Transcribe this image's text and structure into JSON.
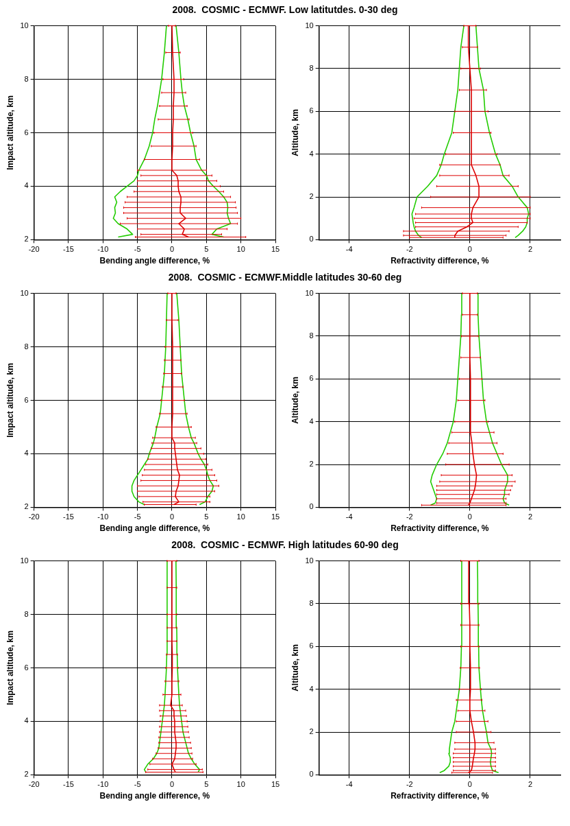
{
  "chart_data": [
    {
      "type": "line",
      "title": "2008.  COSMIC - ECMWF. Low latitutdes. 0-30 deg",
      "xlabel": "Bending angle difference, %",
      "ylabel": "Impact altitude, km",
      "xlim": [
        -20,
        15
      ],
      "xticks": [
        -20,
        -15,
        -10,
        -5,
        0,
        5,
        10,
        15
      ],
      "ylim": [
        2,
        10
      ],
      "yticks": [
        2,
        4,
        6,
        8,
        10
      ],
      "grid": true,
      "marker": "none",
      "series": [
        {
          "color": "#dd0000",
          "x": [
            2.4,
            1.5,
            1.8,
            1.0,
            2.0,
            1.2,
            1.2,
            1.3,
            1.3,
            1.0,
            0.9,
            0.9,
            0.7,
            0,
            0,
            0.1,
            0.1,
            0.2,
            0.2,
            0.3,
            0.3,
            0.1,
            0
          ],
          "values": [
            2.1,
            2.2,
            2.4,
            2.6,
            2.8,
            3,
            3.2,
            3.4,
            3.6,
            3.8,
            4,
            4.2,
            4.4,
            4.6,
            5,
            5.5,
            6,
            6.5,
            7,
            7.5,
            8,
            9,
            10
          ],
          "xerrors": [
            [
              -5.3,
              10.7
            ],
            [
              -4.5,
              7.2
            ],
            [
              -5,
              8
            ],
            [
              -7.5,
              9.5
            ],
            [
              -6.5,
              10
            ],
            [
              -7,
              9.5
            ],
            [
              -7,
              9.3
            ],
            [
              -6.8,
              9.2
            ],
            [
              -6.5,
              8.5
            ],
            [
              -5.5,
              7.5
            ],
            [
              -5,
              7
            ],
            [
              -5,
              6.5
            ],
            [
              -4.5,
              5.8
            ],
            [
              -5,
              5
            ],
            [
              -4,
              4
            ],
            [
              -3,
              3.5
            ],
            [
              -2.6,
              3.0
            ],
            [
              -2,
              2.5
            ],
            [
              -1.8,
              2.2
            ],
            [
              -1.5,
              2
            ],
            [
              -1.3,
              1.7
            ],
            [
              -0.9,
              1.2
            ],
            [
              -0.5,
              0.5
            ]
          ]
        },
        {
          "color": "#22cc00",
          "x": [
            -7.8,
            -5.7,
            -6.5,
            -7.8,
            -8.5,
            -8.2,
            -8.3,
            -8,
            -8.3,
            -7.5,
            -6.5,
            -5.5,
            -5,
            -4.8,
            -4,
            -3.3,
            -2.8,
            -2.5,
            -2.1,
            -1.8,
            -1.5,
            -1.1,
            -0.8
          ],
          "values": [
            2.1,
            2.2,
            2.4,
            2.6,
            2.8,
            3,
            3.2,
            3.4,
            3.6,
            3.8,
            4,
            4.2,
            4.4,
            4.6,
            5,
            5.5,
            6,
            6.5,
            7,
            7.5,
            8,
            9,
            10
          ]
        },
        {
          "color": "#22cc00",
          "x": [
            7.5,
            5.8,
            6.5,
            8.5,
            8.2,
            8,
            8.1,
            8,
            7.5,
            6.8,
            6,
            5.3,
            5,
            4.3,
            3.5,
            3.2,
            2.7,
            2.3,
            1.8,
            1.5,
            1.3,
            1,
            0.6
          ],
          "values": [
            2.1,
            2.2,
            2.4,
            2.6,
            2.8,
            3,
            3.2,
            3.4,
            3.6,
            3.8,
            4,
            4.2,
            4.4,
            4.6,
            5,
            5.5,
            6,
            6.5,
            7,
            7.5,
            8,
            9,
            10
          ]
        }
      ]
    },
    {
      "type": "line",
      "xlabel": "Refractivity difference, %",
      "ylabel": "Altitude, km",
      "xlim": [
        -5,
        3
      ],
      "xticks": [
        -4,
        -2,
        0,
        2
      ],
      "ylim": [
        0,
        10
      ],
      "yticks": [
        0,
        2,
        4,
        6,
        8,
        10
      ],
      "grid": true,
      "marker": "none",
      "series": [
        {
          "color": "#dd0000",
          "x": [
            -0.5,
            -0.5,
            -0.4,
            -0.1,
            0.1,
            0.05,
            0.05,
            0.1,
            0.3,
            0.3,
            0.2,
            0.05,
            0.05,
            0.05,
            0.05,
            0.05,
            0,
            -0.05,
            -0.05
          ],
          "values": [
            0.1,
            0.2,
            0.4,
            0.6,
            0.8,
            1,
            1.2,
            1.5,
            2,
            2.5,
            3,
            3.5,
            4,
            5,
            6,
            7,
            8,
            9,
            10
          ],
          "xerrors": [
            [
              -2,
              1.1
            ],
            [
              -2.2,
              1.2
            ],
            [
              -2.2,
              1.3
            ],
            [
              -1.8,
              1.6
            ],
            [
              -1.8,
              1.9
            ],
            [
              -1.85,
              2.0
            ],
            [
              -1.8,
              2.0
            ],
            [
              -1.6,
              2.0
            ],
            [
              -1.3,
              2.0
            ],
            [
              -1.1,
              1.6
            ],
            [
              -1.0,
              1.3
            ],
            [
              -1.0,
              1.0
            ],
            [
              -0.8,
              0.9
            ],
            [
              -0.55,
              0.7
            ],
            [
              -0.5,
              0.6
            ],
            [
              -0.35,
              0.55
            ],
            [
              -0.3,
              0.35
            ],
            [
              -0.25,
              0.25
            ],
            [
              -0.2,
              0.2
            ]
          ]
        },
        {
          "color": "#22cc00",
          "x": [
            -1.6,
            -1.7,
            -1.8,
            -1.85,
            -1.88,
            -1.9,
            -1.92,
            -1.85,
            -1.75,
            -1.4,
            -1.1,
            -0.95,
            -0.85,
            -0.6,
            -0.5,
            -0.4,
            -0.35,
            -0.3,
            -0.2
          ],
          "values": [
            0.1,
            0.2,
            0.4,
            0.6,
            0.8,
            1,
            1.2,
            1.5,
            2,
            2.5,
            3,
            3.5,
            4,
            5,
            6,
            7,
            8,
            9,
            10
          ]
        },
        {
          "color": "#22cc00",
          "x": [
            1.5,
            1.6,
            1.75,
            1.85,
            1.9,
            1.9,
            1.95,
            1.9,
            1.6,
            1.4,
            1.1,
            1.0,
            0.85,
            0.65,
            0.5,
            0.45,
            0.3,
            0.25,
            0.2
          ],
          "values": [
            0.1,
            0.2,
            0.4,
            0.6,
            0.8,
            1,
            1.2,
            1.5,
            2,
            2.5,
            3,
            3.5,
            4,
            5,
            6,
            7,
            8,
            9,
            10
          ]
        }
      ]
    },
    {
      "type": "line",
      "title": "2008.  COSMIC - ECMWF.Middle latitudes 30-60 deg",
      "xlabel": "Bending angle difference, %",
      "ylabel": "Impact altitude, km",
      "xlim": [
        -20,
        15
      ],
      "xticks": [
        -20,
        -15,
        -10,
        -5,
        0,
        5,
        10,
        15
      ],
      "ylim": [
        2,
        10
      ],
      "yticks": [
        2,
        4,
        6,
        8,
        10
      ],
      "grid": true,
      "marker": "none",
      "series": [
        {
          "color": "#dd0000",
          "x": [
            0.3,
            1.0,
            0.5,
            0.6,
            0.9,
            1.0,
            1.1,
            0.8,
            0.7,
            0.6,
            0.5,
            0.4,
            0.4,
            0,
            0,
            0.1,
            0.1,
            0.1,
            0.1,
            0.1,
            0.1,
            0,
            0
          ],
          "values": [
            2.1,
            2.2,
            2.4,
            2.6,
            2.8,
            3,
            3.2,
            3.4,
            3.6,
            3.8,
            4,
            4.2,
            4.4,
            4.6,
            5,
            5.5,
            6,
            6.5,
            7,
            7.5,
            8,
            9,
            10
          ],
          "xerrors": [
            [
              -4,
              3.5
            ],
            [
              -4.2,
              5.5
            ],
            [
              -4.8,
              5.5
            ],
            [
              -5,
              6.2
            ],
            [
              -5,
              6.8
            ],
            [
              -4.5,
              6.5
            ],
            [
              -4.3,
              6.2
            ],
            [
              -4,
              5.8
            ],
            [
              -3.8,
              5.2
            ],
            [
              -3.5,
              4.9
            ],
            [
              -3.2,
              4.6
            ],
            [
              -3,
              4.2
            ],
            [
              -2.9,
              3.6
            ],
            [
              -2.8,
              3.4
            ],
            [
              -2.3,
              2.8
            ],
            [
              -1.8,
              2.2
            ],
            [
              -1.6,
              1.8
            ],
            [
              -1.4,
              1.6
            ],
            [
              -1.2,
              1.4
            ],
            [
              -1.1,
              1.3
            ],
            [
              -1,
              1.2
            ],
            [
              -0.8,
              0.9
            ],
            [
              -0.6,
              0.6
            ]
          ]
        },
        {
          "color": "#22cc00",
          "x": [
            -4,
            -4.8,
            -5.5,
            -5.8,
            -5.8,
            -5.5,
            -5,
            -4.5,
            -4,
            -3.5,
            -3.3,
            -3,
            -2.7,
            -2.5,
            -2.2,
            -1.7,
            -1.5,
            -1.3,
            -1.1,
            -1.0,
            -0.9,
            -0.8,
            -0.7
          ],
          "values": [
            2.1,
            2.2,
            2.4,
            2.6,
            2.8,
            3,
            3.2,
            3.4,
            3.6,
            3.8,
            4,
            4.2,
            4.4,
            4.6,
            5,
            5.5,
            6,
            6.5,
            7,
            7.5,
            8,
            9,
            10
          ]
        },
        {
          "color": "#22cc00",
          "x": [
            4,
            4.8,
            5.2,
            5.8,
            6,
            5.5,
            5.2,
            5,
            4.7,
            4.2,
            3.8,
            3.5,
            3.2,
            2.8,
            2.4,
            2.0,
            1.8,
            1.6,
            1.4,
            1.3,
            1.2,
            1.0,
            0.7
          ],
          "values": [
            2.1,
            2.2,
            2.4,
            2.6,
            2.8,
            3,
            3.2,
            3.4,
            3.6,
            3.8,
            4,
            4.2,
            4.4,
            4.6,
            5,
            5.5,
            6,
            6.5,
            7,
            7.5,
            8,
            9,
            10
          ]
        }
      ]
    },
    {
      "type": "line",
      "xlabel": "Refractivity difference, %",
      "ylabel": "Altitude, km",
      "xlim": [
        -5,
        3
      ],
      "xticks": [
        -4,
        -2,
        0,
        2
      ],
      "ylim": [
        0,
        10
      ],
      "yticks": [
        0,
        2,
        4,
        6,
        8,
        10
      ],
      "grid": true,
      "marker": "none",
      "series": [
        {
          "color": "#dd0000",
          "x": [
            -0.05,
            0,
            0.05,
            0.1,
            0.15,
            0.18,
            0.2,
            0.22,
            0.15,
            0.1,
            0.07,
            0.02,
            0.02,
            0.02,
            0.02,
            0,
            0,
            0,
            0
          ],
          "values": [
            0.1,
            0.2,
            0.4,
            0.6,
            0.8,
            1,
            1.2,
            1.5,
            2,
            2.5,
            3,
            3.5,
            4,
            5,
            6,
            7,
            8,
            9,
            10
          ],
          "xerrors": [
            [
              -1.6,
              1.2
            ],
            [
              -1.1,
              1.2
            ],
            [
              -1.1,
              1.2
            ],
            [
              -1.1,
              1.3
            ],
            [
              -1.1,
              1.35
            ],
            [
              -1.1,
              1.4
            ],
            [
              -1.0,
              1.5
            ],
            [
              -0.95,
              1.4
            ],
            [
              -0.8,
              1.3
            ],
            [
              -0.75,
              1.1
            ],
            [
              -0.7,
              0.9
            ],
            [
              -0.6,
              0.8
            ],
            [
              -0.5,
              0.6
            ],
            [
              -0.4,
              0.5
            ],
            [
              -0.35,
              0.4
            ],
            [
              -0.3,
              0.35
            ],
            [
              -0.28,
              0.28
            ],
            [
              -0.25,
              0.25
            ],
            [
              -0.25,
              0.25
            ]
          ]
        },
        {
          "color": "#22cc00",
          "x": [
            -1.3,
            -1.15,
            -1.1,
            -1.15,
            -1.2,
            -1.25,
            -1.3,
            -1.25,
            -1.1,
            -0.9,
            -0.75,
            -0.65,
            -0.55,
            -0.45,
            -0.4,
            -0.35,
            -0.3,
            -0.28,
            -0.27
          ],
          "values": [
            0.1,
            0.2,
            0.4,
            0.6,
            0.8,
            1,
            1.2,
            1.5,
            2,
            2.5,
            3,
            3.5,
            4,
            5,
            6,
            7,
            8,
            9,
            10
          ]
        },
        {
          "color": "#22cc00",
          "x": [
            1.3,
            1.15,
            1.1,
            1.15,
            1.15,
            1.2,
            1.25,
            1.25,
            1.05,
            0.9,
            0.75,
            0.65,
            0.55,
            0.45,
            0.4,
            0.35,
            0.3,
            0.27,
            0.27
          ],
          "values": [
            0.1,
            0.2,
            0.4,
            0.6,
            0.8,
            1,
            1.2,
            1.5,
            2,
            2.5,
            3,
            3.5,
            4,
            5,
            6,
            7,
            8,
            9,
            10
          ]
        }
      ]
    },
    {
      "type": "line",
      "title": "2008.  COSMIC - ECMWF. High latitudes 60-90 deg",
      "xlabel": "Bending angle difference, %",
      "ylabel": "Impact altitude, km",
      "xlim": [
        -20,
        15
      ],
      "xticks": [
        -20,
        -15,
        -10,
        -5,
        0,
        5,
        10,
        15
      ],
      "ylim": [
        2,
        10
      ],
      "yticks": [
        2,
        4,
        6,
        8,
        10
      ],
      "grid": true,
      "marker": "none",
      "series": [
        {
          "color": "#dd0000",
          "x": [
            0.5,
            0.3,
            0,
            0.4,
            0.5,
            0.6,
            0.6,
            0.5,
            0.4,
            0.4,
            0.4,
            0.3,
            0.3,
            -0.2,
            0,
            0,
            0.05,
            0.05,
            0,
            0,
            0,
            0,
            0
          ],
          "values": [
            2.1,
            2.2,
            2.4,
            2.6,
            2.8,
            3,
            3.2,
            3.4,
            3.6,
            3.8,
            4,
            4.2,
            4.4,
            4.6,
            5,
            5.5,
            6,
            6.5,
            7,
            7.5,
            8,
            9,
            10
          ],
          "xerrors": [
            [
              -3.8,
              4.5
            ],
            [
              -3.5,
              4.4
            ],
            [
              -3.2,
              3.5
            ],
            [
              -2.8,
              3.0
            ],
            [
              -2.3,
              2.9
            ],
            [
              -2.0,
              2.8
            ],
            [
              -1.9,
              2.7
            ],
            [
              -1.9,
              2.5
            ],
            [
              -1.8,
              2.4
            ],
            [
              -1.8,
              2.3
            ],
            [
              -1.7,
              2.2
            ],
            [
              -1.7,
              2.1
            ],
            [
              -1.8,
              2.0
            ],
            [
              -1.8,
              1.5
            ],
            [
              -1.3,
              1.3
            ],
            [
              -1.0,
              1.0
            ],
            [
              -0.9,
              0.9
            ],
            [
              -0.8,
              0.8
            ],
            [
              -0.7,
              0.7
            ],
            [
              -0.7,
              0.7
            ],
            [
              -0.7,
              0.7
            ],
            [
              -0.7,
              0.7
            ],
            [
              -0.7,
              0.7
            ]
          ]
        },
        {
          "color": "#22cc00",
          "x": [
            -3.8,
            -4.0,
            -3.5,
            -2.7,
            -2.2,
            -1.9,
            -1.8,
            -1.7,
            -1.6,
            -1.5,
            -1.4,
            -1.3,
            -1.2,
            -1.1,
            -1.0,
            -0.9,
            -0.8,
            -0.75,
            -0.7,
            -0.7,
            -0.7,
            -0.7,
            -0.7
          ],
          "values": [
            2.1,
            2.2,
            2.4,
            2.6,
            2.8,
            3,
            3.2,
            3.4,
            3.6,
            3.8,
            4,
            4.2,
            4.4,
            4.6,
            5,
            5.5,
            6,
            6.5,
            7,
            7.5,
            8,
            9,
            10
          ]
        },
        {
          "color": "#22cc00",
          "x": [
            3.8,
            4.0,
            3.3,
            2.8,
            2.4,
            2.2,
            2.0,
            1.8,
            1.6,
            1.5,
            1.4,
            1.3,
            1.2,
            1.1,
            1.0,
            0.9,
            0.8,
            0.76,
            0.72,
            0.69,
            0.62,
            0.58
          ],
          "values": [
            2.1,
            2.2,
            2.4,
            2.6,
            2.8,
            3,
            3.2,
            3.4,
            3.6,
            3.8,
            4,
            4.2,
            4.4,
            4.6,
            5,
            5.5,
            6,
            6.5,
            7,
            7.5,
            9,
            10
          ]
        }
      ]
    },
    {
      "type": "line",
      "xlabel": "Refractivity difference, %",
      "ylabel": "Altitude, km",
      "xlim": [
        -5,
        3
      ],
      "xticks": [
        -4,
        -2,
        0,
        2
      ],
      "ylim": [
        0,
        10
      ],
      "yticks": [
        0,
        2,
        4,
        6,
        8,
        10
      ],
      "grid": true,
      "marker": "none",
      "series": [
        {
          "color": "#dd0000",
          "x": [
            -0.05,
            0.05,
            0.08,
            0.1,
            0.12,
            0.15,
            0.17,
            0.17,
            0.12,
            0.05,
            0,
            0,
            0.02,
            0.02,
            0,
            0,
            -0.02,
            -0.04
          ],
          "values": [
            0.1,
            0.2,
            0.4,
            0.6,
            0.8,
            1,
            1.2,
            1.5,
            2,
            2.5,
            3,
            3.5,
            4,
            5,
            6,
            7,
            8,
            10
          ],
          "xerrors": [
            [
              -0.6,
              0.75
            ],
            [
              -0.55,
              0.85
            ],
            [
              -0.55,
              0.85
            ],
            [
              -0.55,
              0.85
            ],
            [
              -0.55,
              0.85
            ],
            [
              -0.55,
              0.85
            ],
            [
              -0.5,
              0.85
            ],
            [
              -0.5,
              0.8
            ],
            [
              -0.45,
              0.7
            ],
            [
              -0.45,
              0.6
            ],
            [
              -0.4,
              0.5
            ],
            [
              -0.45,
              0.4
            ],
            [
              -0.35,
              0.38
            ],
            [
              -0.32,
              0.32
            ],
            [
              -0.3,
              0.3
            ],
            [
              -0.3,
              0.3
            ],
            [
              -0.3,
              0.3
            ],
            [
              -0.3,
              0.3
            ]
          ]
        },
        {
          "color": "#22cc00",
          "x": [
            -1.0,
            -0.85,
            -0.7,
            -0.65,
            -0.65,
            -0.7,
            -0.68,
            -0.65,
            -0.6,
            -0.5,
            -0.45,
            -0.4,
            -0.35,
            -0.3,
            -0.28,
            -0.27,
            -0.27,
            -0.27,
            -0.27
          ],
          "values": [
            0.1,
            0.2,
            0.4,
            0.6,
            0.8,
            1,
            1.2,
            1.5,
            2,
            2.5,
            3,
            3.5,
            4,
            5,
            6,
            7,
            8,
            9,
            10
          ]
        },
        {
          "color": "#22cc00",
          "x": [
            0.95,
            0.75,
            0.7,
            0.68,
            0.7,
            0.72,
            0.7,
            0.6,
            0.55,
            0.48,
            0.42,
            0.38,
            0.35,
            0.3,
            0.29,
            0.28,
            0.27,
            0.26,
            0.25
          ],
          "values": [
            0.1,
            0.2,
            0.4,
            0.6,
            0.8,
            1,
            1.2,
            1.5,
            2,
            2.5,
            3,
            3.5,
            4,
            5,
            6,
            7,
            8,
            9,
            10
          ]
        }
      ]
    }
  ]
}
